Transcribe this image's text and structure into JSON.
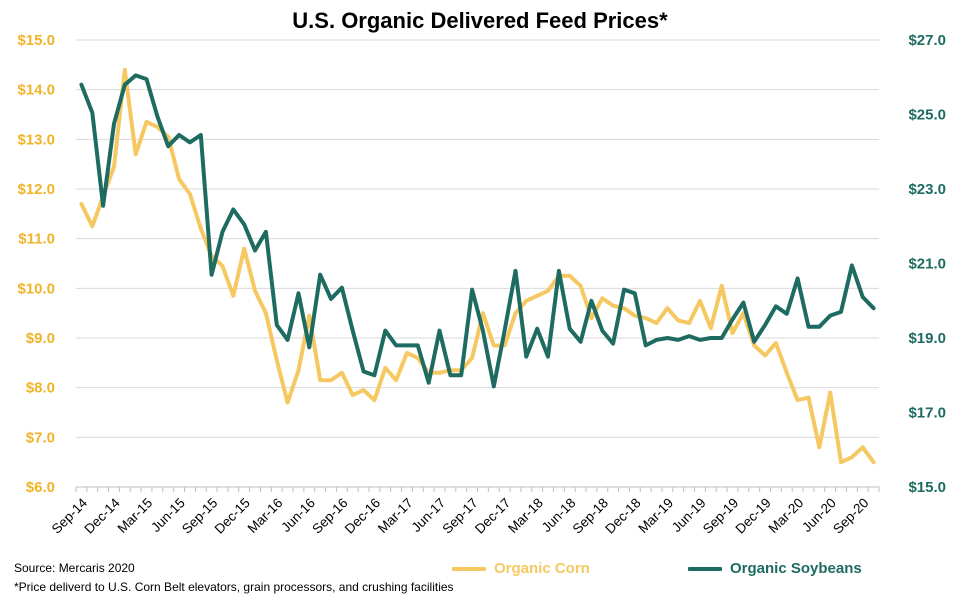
{
  "chart_data": {
    "type": "line",
    "title": "U.S. Organic Delivered Feed Prices*",
    "x_tick_labels": [
      "Sep-14",
      "Dec-14",
      "Mar-15",
      "Jun-15",
      "Sep-15",
      "Dec-15",
      "Mar-16",
      "Jun-16",
      "Sep-16",
      "Dec-16",
      "Mar-17",
      "Jun-17",
      "Sep-17",
      "Dec-17",
      "Mar-18",
      "Jun-18",
      "Sep-18",
      "Dec-18",
      "Mar-19",
      "Jun-19",
      "Sep-19",
      "Dec-19",
      "Mar-20",
      "Jun-20",
      "Sep-20"
    ],
    "y_left": {
      "min": 6.0,
      "max": 15.0,
      "ticks": [
        "$6.0",
        "$7.0",
        "$8.0",
        "$9.0",
        "$10.0",
        "$11.0",
        "$12.0",
        "$13.0",
        "$14.0",
        "$15.0"
      ]
    },
    "y_right": {
      "min": 15.0,
      "max": 27.0,
      "ticks": [
        "$15.0",
        "$17.0",
        "$19.0",
        "$21.0",
        "$23.0",
        "$25.0",
        "$27.0"
      ]
    },
    "grid": true,
    "legend_position": "bottom",
    "series": [
      {
        "name": "Organic Corn",
        "axis": "left",
        "color": "#f5c862",
        "values": [
          11.7,
          11.25,
          11.85,
          12.45,
          14.4,
          12.7,
          13.35,
          13.25,
          13.05,
          12.2,
          11.9,
          11.2,
          10.65,
          10.45,
          9.85,
          10.8,
          9.95,
          9.5,
          8.55,
          7.7,
          8.35,
          9.45,
          8.15,
          8.15,
          8.3,
          7.85,
          7.95,
          7.75,
          8.4,
          8.15,
          8.7,
          8.6,
          8.3,
          8.3,
          8.35,
          8.35,
          8.6,
          9.5,
          8.85,
          8.85,
          9.5,
          9.75,
          9.85,
          9.95,
          10.25,
          10.25,
          10.05,
          9.4,
          9.8,
          9.65,
          9.6,
          9.45,
          9.4,
          9.3,
          9.6,
          9.35,
          9.3,
          9.75,
          9.2,
          10.05,
          9.1,
          9.5,
          8.85,
          8.65,
          8.9,
          8.3,
          7.75,
          7.8,
          6.8,
          7.9,
          6.5,
          6.6,
          6.8,
          6.5
        ]
      },
      {
        "name": "Organic Soybeans",
        "axis": "right",
        "color": "#1e6b62",
        "values": [
          25.8,
          25.05,
          22.55,
          24.75,
          25.8,
          26.05,
          25.95,
          24.95,
          24.15,
          24.45,
          24.25,
          24.45,
          20.7,
          21.85,
          22.45,
          22.05,
          21.35,
          21.85,
          19.35,
          18.95,
          20.2,
          18.75,
          20.7,
          20.05,
          20.35,
          19.2,
          18.1,
          18.0,
          19.2,
          18.8,
          18.8,
          18.8,
          17.8,
          19.2,
          18.0,
          18.0,
          20.3,
          19.2,
          17.7,
          19.2,
          20.8,
          18.5,
          19.25,
          18.5,
          20.8,
          19.25,
          18.9,
          20.0,
          19.2,
          18.85,
          20.3,
          20.2,
          18.8,
          18.95,
          19.0,
          18.95,
          19.05,
          18.95,
          19.0,
          19.0,
          19.5,
          19.95,
          18.9,
          19.35,
          19.85,
          19.65,
          20.6,
          19.3,
          19.3,
          19.6,
          19.7,
          20.95,
          20.1,
          19.8
        ]
      }
    ]
  },
  "footer": {
    "source": "Source: Mercaris 2020",
    "note": "*Price deliverd to U.S. Corn Belt elevators, grain processors, and crushing facilities"
  }
}
